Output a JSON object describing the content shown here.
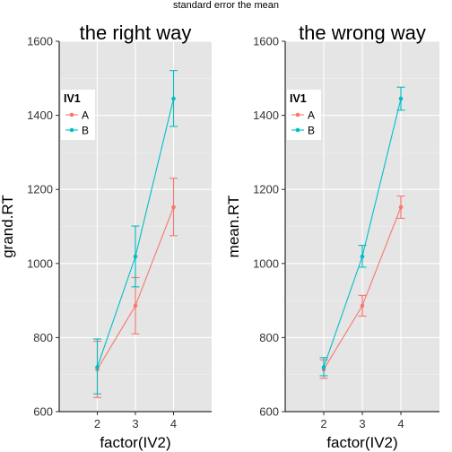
{
  "suptitle": "standard error the mean",
  "legend_title": "IV1",
  "chart_data": [
    {
      "type": "line",
      "title": "the right way",
      "xlabel": "factor(IV2)",
      "ylabel": "grand.RT",
      "categories": [
        "2",
        "3",
        "4"
      ],
      "ylim": [
        600,
        1600
      ],
      "yticks": [
        600,
        800,
        1000,
        1200,
        1400,
        1600
      ],
      "grid": true,
      "legend_position": "top-left",
      "series": [
        {
          "name": "A",
          "color": "#F8766D",
          "values": [
            714,
            886,
            1152
          ],
          "err_low": [
            638,
            810,
            1075
          ],
          "err_high": [
            790,
            962,
            1230
          ]
        },
        {
          "name": "B",
          "color": "#00BFC4",
          "values": [
            720,
            1019,
            1445
          ],
          "err_low": [
            648,
            937,
            1370
          ],
          "err_high": [
            796,
            1101,
            1521
          ]
        }
      ]
    },
    {
      "type": "line",
      "title": "the wrong way",
      "xlabel": "factor(IV2)",
      "ylabel": "mean.RT",
      "categories": [
        "2",
        "3",
        "4"
      ],
      "ylim": [
        600,
        1600
      ],
      "yticks": [
        600,
        800,
        1000,
        1200,
        1400,
        1600
      ],
      "grid": true,
      "legend_position": "top-left",
      "series": [
        {
          "name": "A",
          "color": "#F8766D",
          "values": [
            714,
            886,
            1152
          ],
          "err_low": [
            690,
            858,
            1122
          ],
          "err_high": [
            740,
            914,
            1182
          ]
        },
        {
          "name": "B",
          "color": "#00BFC4",
          "values": [
            720,
            1019,
            1445
          ],
          "err_low": [
            697,
            990,
            1414
          ],
          "err_high": [
            746,
            1049,
            1476
          ]
        }
      ]
    }
  ]
}
